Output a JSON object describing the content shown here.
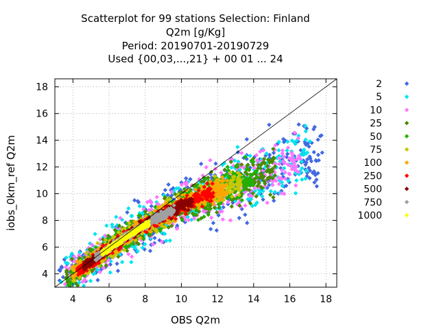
{
  "chart_data": {
    "type": "scatter",
    "title_lines": [
      "Scatterplot for   99 stations Selection: Finland",
      "Q2m [g/Kg]",
      "Period: 20190701-20190729",
      "Used {00,03,...,21} + 00 01 ... 24"
    ],
    "xlabel": "OBS Q2m",
    "ylabel": "iobs_0km_ref Q2m",
    "xlim": [
      3,
      18.6
    ],
    "ylim": [
      3,
      18.6
    ],
    "xticks": [
      "4",
      "6",
      "8",
      "10",
      "12",
      "14",
      "16",
      "18"
    ],
    "yticks": [
      "4",
      "6",
      "8",
      "10",
      "12",
      "14",
      "16",
      "18"
    ],
    "grid": true,
    "legend_position": "right",
    "reference_line": "y = x",
    "density_classes": [
      {
        "name": "2",
        "color": "#4169e1",
        "width": 2.2,
        "x": [
          3.2,
          17.8
        ]
      },
      {
        "name": "5",
        "color": "#00e5ee",
        "width": 1.9,
        "x": [
          3.3,
          17.2
        ]
      },
      {
        "name": "10",
        "color": "#ff77ff",
        "width": 1.6,
        "x": [
          3.5,
          16.6
        ]
      },
      {
        "name": "25",
        "color": "#4b8b00",
        "width": 1.35,
        "x": [
          3.6,
          15.3
        ]
      },
      {
        "name": "50",
        "color": "#22b000",
        "width": 1.1,
        "x": [
          3.7,
          14.2
        ]
      },
      {
        "name": "75",
        "color": "#c8c800",
        "width": 0.9,
        "x": [
          3.9,
          13.3
        ]
      },
      {
        "name": "100",
        "color": "#ffa500",
        "width": 0.75,
        "x": [
          4.0,
          12.6
        ]
      },
      {
        "name": "250",
        "color": "#ff0000",
        "width": 0.6,
        "x": [
          4.2,
          11.8
        ]
      },
      {
        "name": "500",
        "color": "#8b0000",
        "width": 0.42,
        "x": [
          4.6,
          10.6
        ]
      },
      {
        "name": "750",
        "color": "#a0a0a0",
        "width": 0.32,
        "x": [
          5.2,
          9.6
        ]
      },
      {
        "name": "1000",
        "color": "#ffff00",
        "width": 0.2,
        "x": [
          5.6,
          8.2
        ]
      }
    ]
  }
}
